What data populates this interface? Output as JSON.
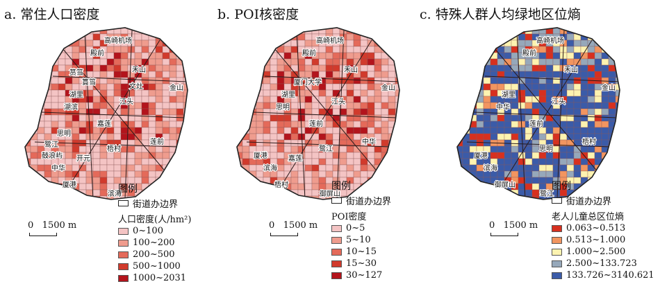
{
  "panels": [
    {
      "title": "a. 常住人口密度",
      "legend_heading": "图例",
      "boundary_label": "街道办边界",
      "legend_title": "人口密度(人/hm²)",
      "scale_label": "0   1500 m",
      "classes": [
        "0~100",
        "100~200",
        "200~500",
        "500~1000",
        "1000~2031"
      ],
      "colors": [
        "#f4c4c4",
        "#ef9c8e",
        "#e46a5a",
        "#d13a2c",
        "#b3141c"
      ],
      "base_color": "#f4c4c4",
      "labels": [
        "高崎机场",
        "殿前",
        "禾山",
        "金山",
        "湖里",
        "江头",
        "嘉莲",
        "莲前",
        "鼓浪屿",
        "中华",
        "厦港",
        "滨海",
        "梧村",
        "湖滨",
        "篔筜",
        "开元",
        "鹭江",
        "思明",
        "文灶",
        "筼筜"
      ]
    },
    {
      "title": "b. POI核密度",
      "legend_heading": "图例",
      "boundary_label": "街道办边界",
      "legend_title": "POI密度",
      "scale_label": "0   1500 m",
      "classes": [
        "0~5",
        "5~10",
        "10~15",
        "15~30",
        "30~127"
      ],
      "colors": [
        "#f4c4c4",
        "#ef9c8e",
        "#e46a5a",
        "#d13a2c",
        "#b3141c"
      ],
      "base_color": "#f4c4c4",
      "labels": [
        "高崎机场",
        "殿前",
        "禾山",
        "金山",
        "湖里",
        "江头",
        "莲前",
        "中华",
        "厦港",
        "滨海",
        "梧村",
        "御屏山",
        "鹭江",
        "思明",
        "厦门大学",
        "嘉莲"
      ]
    },
    {
      "title": "c. 特殊人群人均绿地区位熵",
      "legend_heading": "图例",
      "boundary_label": "街道办边界",
      "legend_title": "老人儿童总区位熵",
      "scale_label": "0   1500 m",
      "classes": [
        "0.063~0.513",
        "0.513~1.000",
        "1.000~2.500",
        "2.500~133.723",
        "133.726~3140.621"
      ],
      "colors": [
        "#d7301f",
        "#f29560",
        "#fdf3b0",
        "#96a8ba",
        "#3b5ba8"
      ],
      "base_color": "#3b5ba8",
      "labels": [
        "高崎机场",
        "殿前",
        "禾山",
        "金山",
        "湖里",
        "江头",
        "莲前",
        "梧村",
        "厦港",
        "滨海",
        "御屏山",
        "鹭江",
        "思明",
        "中华"
      ]
    }
  ]
}
